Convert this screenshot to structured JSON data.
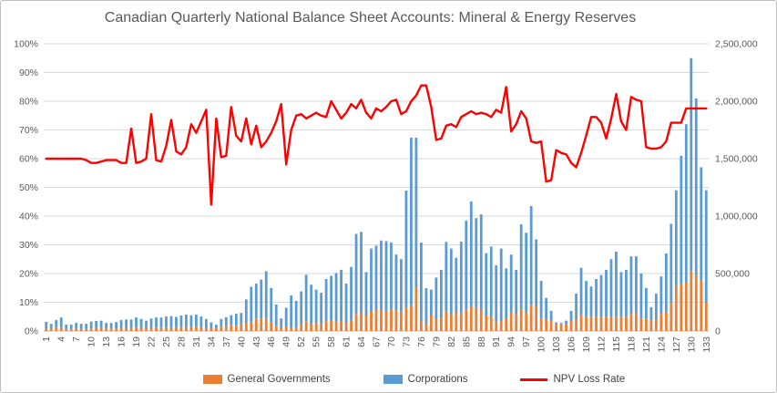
{
  "colors": {
    "corporations": "#5B9BD5",
    "general_governments": "#ED7D31",
    "npv_line": "#FF0000",
    "grid": "#D9D9D9",
    "axis_line": "#BFBFBF",
    "text": "#595959"
  },
  "chart_data": {
    "type": "bar",
    "subtype": "stacked-column-with-line",
    "title": "Canadian Quarterly National Balance Sheet Accounts: Mineral & Energy Reserves",
    "x": {
      "first": 1,
      "last": 133,
      "tick_step": 3,
      "tick_labels": [
        1,
        4,
        7,
        10,
        13,
        16,
        19,
        22,
        25,
        28,
        31,
        34,
        37,
        40,
        43,
        46,
        49,
        52,
        55,
        58,
        61,
        64,
        67,
        70,
        73,
        76,
        79,
        82,
        85,
        88,
        91,
        94,
        97,
        100,
        103,
        106,
        109,
        112,
        115,
        118,
        121,
        124,
        127,
        130,
        133
      ]
    },
    "left_axis": {
      "min": 0,
      "max": 100,
      "labels": [
        "0%",
        "10%",
        "20%",
        "30%",
        "40%",
        "50%",
        "60%",
        "70%",
        "80%",
        "90%",
        "100%"
      ]
    },
    "right_axis": {
      "min": 0,
      "max": 2500000,
      "labels": [
        "0",
        "500,000",
        "1,000,000",
        "1,500,000",
        "2,000,000",
        "2,500,000"
      ]
    },
    "grid": "horizontal",
    "legend_position": "bottom",
    "series": [
      {
        "name": "General Governments",
        "type": "bar",
        "stacked": true,
        "axis": "right",
        "color": "#ED7D31",
        "values": [
          22500,
          22500,
          25000,
          25000,
          17500,
          17500,
          22500,
          17500,
          17500,
          22500,
          25000,
          25000,
          22500,
          22500,
          22500,
          27500,
          27500,
          27500,
          30000,
          27500,
          25000,
          27500,
          30000,
          30000,
          32500,
          32500,
          32500,
          35000,
          35000,
          35000,
          37500,
          32500,
          27500,
          27500,
          25000,
          37500,
          40000,
          52500,
          45000,
          62500,
          70000,
          80000,
          110000,
          110000,
          110000,
          72500,
          45000,
          32500,
          37500,
          32500,
          32500,
          62500,
          85000,
          57500,
          70000,
          62500,
          95000,
          90000,
          82500,
          95000,
          70000,
          90000,
          147500,
          162500,
          135000,
          175000,
          187500,
          180000,
          175000,
          187500,
          180000,
          175000,
          200000,
          225000,
          375000,
          95000,
          55000,
          135000,
          107500,
          115000,
          175000,
          147500,
          162500,
          152500,
          187500,
          215000,
          200000,
          187500,
          135000,
          122500,
          82500,
          87500,
          107500,
          162500,
          147500,
          187500,
          162500,
          227500,
          215000,
          112500,
          100000,
          87500,
          62500,
          62500,
          62500,
          87500,
          100000,
          137500,
          125000,
          125000,
          125000,
          125000,
          125000,
          125000,
          125000,
          125000,
          125000,
          150000,
          162500,
          112500,
          105000,
          92500,
          100000,
          150000,
          165000,
          250000,
          387500,
          412500,
          425000,
          525000,
          487500,
          437500,
          250000
        ]
      },
      {
        "name": "Corporations",
        "type": "bar",
        "stacked": true,
        "axis": "right",
        "color": "#5B9BD5",
        "values": [
          57500,
          40000,
          70000,
          92500,
          37500,
          37500,
          47500,
          45000,
          45000,
          60000,
          62500,
          65000,
          47500,
          47500,
          55000,
          67500,
          72500,
          72500,
          87500,
          77500,
          65000,
          82500,
          87500,
          87500,
          95000,
          97500,
          90000,
          100000,
          107500,
          102500,
          105000,
          95000,
          77500,
          47500,
          30000,
          67500,
          80000,
          85000,
          105000,
          95000,
          205000,
          305000,
          302500,
          337500,
          410000,
          302500,
          185000,
          77500,
          165000,
          277500,
          230000,
          282500,
          405000,
          345000,
          290000,
          270000,
          357500,
          390000,
          422500,
          437500,
          342500,
          467500,
          697500,
          700000,
          377500,
          542500,
          555000,
          607500,
          607500,
          582500,
          485000,
          450000,
          1022500,
          1457500,
          1307500,
          675000,
          317500,
          225000,
          357500,
          417500,
          600000,
          570000,
          475000,
          625000,
          772500,
          912500,
          782500,
          827500,
          542500,
          612500,
          490000,
          630000,
          437500,
          502500,
          385000,
          740000,
          692500,
          860000,
          582500,
          325000,
          187500,
          87500,
          12500,
          7500,
          27500,
          87500,
          225000,
          412500,
          310000,
          262500,
          327500,
          362500,
          407500,
          500000,
          565000,
          387500,
          407500,
          500000,
          487500,
          387500,
          270000,
          115000,
          225000,
          325000,
          510000,
          682500,
          837500,
          1112500,
          1375000,
          1850000,
          1537500,
          987500,
          975000
        ]
      },
      {
        "name": "NPV Loss Rate",
        "type": "line",
        "axis": "left",
        "color": "#FF0000",
        "values": [
          60,
          60,
          60,
          60,
          60,
          60,
          60,
          60,
          59.5,
          58.5,
          58.5,
          59,
          59.5,
          59.5,
          59.5,
          58.5,
          58.5,
          70.5,
          58.5,
          59,
          60,
          75.5,
          59.5,
          59,
          64.5,
          73.5,
          62.5,
          61.5,
          64,
          72,
          69,
          73,
          77,
          44,
          74,
          60.5,
          61,
          78,
          68,
          66,
          74,
          65,
          71.5,
          64,
          66,
          69,
          73,
          79,
          58,
          70,
          75,
          75.5,
          74,
          75,
          76,
          75,
          74.5,
          80,
          77,
          74,
          76,
          79,
          77.5,
          80.5,
          76,
          74,
          77.5,
          76.5,
          78,
          80,
          80.5,
          75.5,
          76.5,
          80,
          82,
          85.5,
          85.5,
          78,
          66.5,
          67,
          71.5,
          72,
          71,
          74.5,
          75.5,
          76.5,
          75.5,
          76,
          75.5,
          74.5,
          77,
          76,
          85,
          69.5,
          72,
          76.5,
          74,
          66,
          65.5,
          66,
          52,
          52.5,
          63,
          62,
          61.5,
          58.5,
          57,
          62,
          68,
          74.5,
          74.5,
          72.5,
          67,
          74,
          82.5,
          73,
          70,
          81.5,
          80.5,
          80,
          64,
          63.5,
          63.5,
          64,
          66,
          72.5,
          72.5,
          72.5,
          77.5,
          77.5,
          77.5,
          77.5,
          77.5
        ]
      }
    ]
  }
}
